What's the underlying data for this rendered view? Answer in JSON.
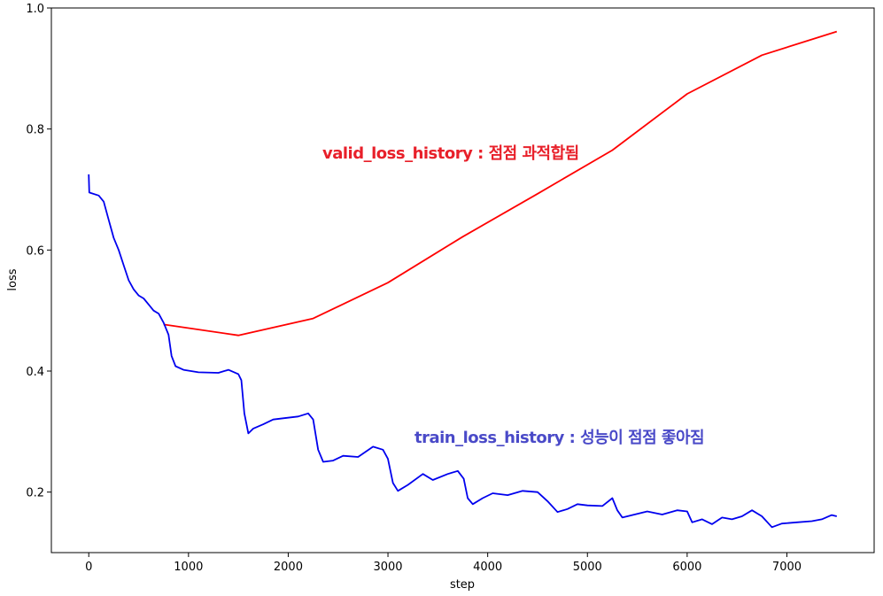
{
  "chart_data": {
    "type": "line",
    "xlabel": "step",
    "ylabel": "loss",
    "xlim": [
      -375,
      7875
    ],
    "ylim": [
      0.1,
      1.0
    ],
    "xticks": [
      0,
      1000,
      2000,
      3000,
      4000,
      5000,
      6000,
      7000
    ],
    "yticks": [
      0.2,
      0.4,
      0.6,
      0.8,
      {
        "value": 1,
        "label": "1.0"
      }
    ],
    "annotations": [
      {
        "text": "valid_loss_history : 점점 과적합됨",
        "color": "#e8202a"
      },
      {
        "text": "train_loss_history : 성능이 점점 좋아짐",
        "color": "#4a4ac8"
      }
    ],
    "series": [
      {
        "name": "valid_loss_history",
        "color": "#ff0000",
        "x": [
          750,
          1500,
          2250,
          3000,
          3750,
          4500,
          5250,
          6000,
          6750,
          7500
        ],
        "values": [
          0.477,
          0.459,
          0.487,
          0.546,
          0.622,
          0.693,
          0.765,
          0.858,
          0.922,
          0.961
        ]
      },
      {
        "name": "train_loss_history",
        "color": "#0000ee",
        "x": [
          0,
          5,
          100,
          150,
          200,
          250,
          300,
          350,
          400,
          450,
          500,
          550,
          600,
          650,
          700,
          750,
          800,
          830,
          870,
          950,
          1100,
          1300,
          1400,
          1500,
          1530,
          1560,
          1600,
          1650,
          1750,
          1850,
          1950,
          2100,
          2200,
          2250,
          2300,
          2350,
          2450,
          2550,
          2700,
          2850,
          2950,
          3000,
          3050,
          3100,
          3200,
          3350,
          3450,
          3600,
          3700,
          3760,
          3800,
          3850,
          3950,
          4050,
          4200,
          4350,
          4500,
          4600,
          4700,
          4800,
          4900,
          5000,
          5150,
          5250,
          5300,
          5350,
          5450,
          5600,
          5750,
          5900,
          6000,
          6050,
          6150,
          6250,
          6350,
          6450,
          6550,
          6650,
          6750,
          6850,
          6950,
          7100,
          7250,
          7350,
          7450,
          7500
        ],
        "values": [
          0.725,
          0.695,
          0.69,
          0.68,
          0.65,
          0.62,
          0.6,
          0.575,
          0.55,
          0.535,
          0.525,
          0.52,
          0.51,
          0.5,
          0.495,
          0.48,
          0.46,
          0.425,
          0.408,
          0.402,
          0.398,
          0.397,
          0.402,
          0.395,
          0.385,
          0.33,
          0.297,
          0.305,
          0.312,
          0.32,
          0.322,
          0.325,
          0.33,
          0.32,
          0.27,
          0.25,
          0.252,
          0.26,
          0.258,
          0.275,
          0.27,
          0.255,
          0.215,
          0.202,
          0.212,
          0.23,
          0.22,
          0.23,
          0.235,
          0.222,
          0.19,
          0.18,
          0.19,
          0.198,
          0.195,
          0.202,
          0.2,
          0.185,
          0.167,
          0.172,
          0.18,
          0.178,
          0.177,
          0.19,
          0.17,
          0.158,
          0.162,
          0.168,
          0.163,
          0.17,
          0.168,
          0.15,
          0.155,
          0.147,
          0.158,
          0.155,
          0.16,
          0.17,
          0.16,
          0.142,
          0.148,
          0.15,
          0.152,
          0.155,
          0.162,
          0.16
        ]
      }
    ]
  }
}
